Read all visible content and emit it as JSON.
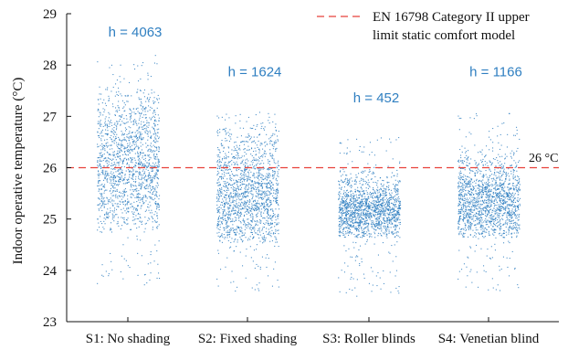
{
  "chart_data": {
    "type": "scatter",
    "title": "",
    "xlabel": "",
    "ylabel": "Indoor operative temperature (°C)",
    "ylim": [
      23,
      29
    ],
    "yticks": [
      23,
      24,
      25,
      26,
      27,
      28,
      29
    ],
    "categories": [
      "S1: No shading",
      "S2: Fixed shading",
      "S3: Roller blinds",
      "S4: Venetian blind"
    ],
    "annotations": [
      "h = 4063",
      "h = 1624",
      "h = 452",
      "h = 1166"
    ],
    "hours_above_limit": [
      4063,
      1624,
      452,
      1166
    ],
    "series": [
      {
        "category": "S1: No shading",
        "core_range": [
          24.9,
          27.4
        ],
        "full_range": [
          23.7,
          28.2
        ],
        "center": 26.0
      },
      {
        "category": "S2: Fixed shading",
        "core_range": [
          24.7,
          26.8
        ],
        "full_range": [
          23.6,
          27.1
        ],
        "center": 25.4
      },
      {
        "category": "S3: Roller blinds",
        "core_range": [
          24.8,
          25.8
        ],
        "full_range": [
          23.5,
          26.6
        ],
        "center": 25.15
      },
      {
        "category": "S4: Venetian blind",
        "core_range": [
          24.8,
          26.2
        ],
        "full_range": [
          23.6,
          27.1
        ],
        "center": 25.3
      }
    ],
    "reference_line": {
      "value": 26,
      "value_label": "26 °C",
      "legend_lines": [
        "EN 16798 Category II upper",
        "limit static comfort model"
      ],
      "color": "#e8423b",
      "style": "dashed"
    },
    "point_color": "#2f7fc1",
    "grid": false,
    "legend_position": "top-right"
  }
}
